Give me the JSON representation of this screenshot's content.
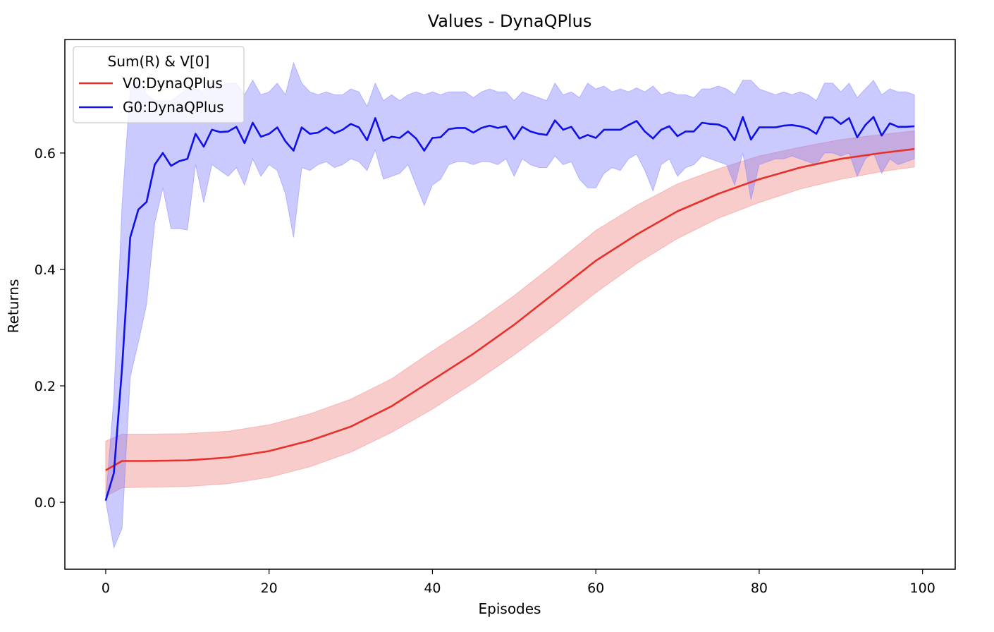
{
  "chart_data": {
    "type": "line",
    "title": "Values - DynaQPlus",
    "xlabel": "Episodes",
    "ylabel": "Returns",
    "xlim": [
      -5,
      104
    ],
    "ylim": [
      -0.115,
      0.795
    ],
    "xticks": [
      0,
      20,
      40,
      60,
      80,
      100
    ],
    "yticks": [
      0.0,
      0.2,
      0.4,
      0.6
    ],
    "xtick_labels": [
      "0",
      "20",
      "40",
      "60",
      "80",
      "100"
    ],
    "ytick_labels": [
      "0.0",
      "0.2",
      "0.4",
      "0.6"
    ],
    "grid": false,
    "legend": {
      "title": "Sum(R) & V[0]",
      "placement": "top-left",
      "entries": [
        "V0:DynaQPlus",
        "G0:DynaQPlus"
      ]
    },
    "series": [
      {
        "name": "V0:DynaQPlus",
        "color": "#e8302a",
        "band_color": "#f08080",
        "x": [
          0,
          2,
          5,
          10,
          15,
          20,
          25,
          30,
          35,
          40,
          45,
          50,
          55,
          60,
          65,
          70,
          75,
          80,
          85,
          90,
          95,
          99
        ],
        "mean": [
          0.055,
          0.071,
          0.071,
          0.072,
          0.077,
          0.088,
          0.106,
          0.13,
          0.165,
          0.21,
          0.255,
          0.305,
          0.36,
          0.415,
          0.46,
          0.5,
          0.53,
          0.555,
          0.575,
          0.59,
          0.6,
          0.607
        ],
        "lower": [
          0.01,
          0.025,
          0.026,
          0.027,
          0.032,
          0.043,
          0.061,
          0.086,
          0.12,
          0.16,
          0.205,
          0.253,
          0.305,
          0.36,
          0.41,
          0.453,
          0.488,
          0.515,
          0.538,
          0.555,
          0.568,
          0.576
        ],
        "upper": [
          0.105,
          0.117,
          0.117,
          0.118,
          0.122,
          0.133,
          0.152,
          0.177,
          0.212,
          0.26,
          0.305,
          0.355,
          0.41,
          0.467,
          0.51,
          0.547,
          0.573,
          0.595,
          0.61,
          0.623,
          0.632,
          0.638
        ]
      },
      {
        "name": "G0:DynaQPlus",
        "color": "#1010e8",
        "band_color": "#7b7bff",
        "x": [
          0,
          1,
          2,
          3,
          4,
          5,
          6,
          7,
          8,
          9,
          10,
          11,
          12,
          13,
          14,
          15,
          16,
          17,
          18,
          19,
          20,
          21,
          22,
          23,
          24,
          25,
          26,
          27,
          28,
          29,
          30,
          31,
          32,
          33,
          34,
          35,
          36,
          37,
          38,
          39,
          40,
          41,
          42,
          43,
          44,
          45,
          46,
          47,
          48,
          49,
          50,
          51,
          52,
          53,
          54,
          55,
          56,
          57,
          58,
          59,
          60,
          61,
          62,
          63,
          64,
          65,
          66,
          67,
          68,
          69,
          70,
          71,
          72,
          73,
          74,
          75,
          76,
          77,
          78,
          79,
          80,
          81,
          82,
          83,
          84,
          85,
          86,
          87,
          88,
          89,
          90,
          91,
          92,
          93,
          94,
          95,
          96,
          97,
          98,
          99
        ],
        "mean": [
          0.003,
          0.05,
          0.23,
          0.455,
          0.503,
          0.516,
          0.58,
          0.6,
          0.578,
          0.586,
          0.59,
          0.633,
          0.611,
          0.64,
          0.636,
          0.637,
          0.645,
          0.617,
          0.652,
          0.628,
          0.633,
          0.644,
          0.62,
          0.604,
          0.644,
          0.633,
          0.635,
          0.644,
          0.634,
          0.64,
          0.65,
          0.644,
          0.622,
          0.66,
          0.621,
          0.628,
          0.626,
          0.637,
          0.625,
          0.604,
          0.626,
          0.627,
          0.641,
          0.643,
          0.643,
          0.635,
          0.643,
          0.647,
          0.643,
          0.646,
          0.624,
          0.645,
          0.637,
          0.633,
          0.631,
          0.656,
          0.64,
          0.645,
          0.625,
          0.631,
          0.626,
          0.64,
          0.64,
          0.64,
          0.648,
          0.655,
          0.637,
          0.625,
          0.64,
          0.646,
          0.629,
          0.637,
          0.637,
          0.652,
          0.65,
          0.649,
          0.643,
          0.622,
          0.662,
          0.623,
          0.644,
          0.644,
          0.644,
          0.647,
          0.648,
          0.646,
          0.642,
          0.633,
          0.661,
          0.661,
          0.65,
          0.66,
          0.627,
          0.648,
          0.662,
          0.63,
          0.651,
          0.645,
          0.645,
          0.646
        ],
        "lower": [
          0.003,
          -0.078,
          -0.045,
          0.215,
          0.275,
          0.34,
          0.48,
          0.54,
          0.47,
          0.47,
          0.468,
          0.58,
          0.515,
          0.58,
          0.57,
          0.56,
          0.575,
          0.545,
          0.59,
          0.56,
          0.58,
          0.57,
          0.53,
          0.455,
          0.575,
          0.57,
          0.58,
          0.585,
          0.575,
          0.58,
          0.59,
          0.585,
          0.57,
          0.605,
          0.555,
          0.56,
          0.565,
          0.58,
          0.545,
          0.51,
          0.545,
          0.555,
          0.58,
          0.585,
          0.585,
          0.58,
          0.585,
          0.585,
          0.58,
          0.59,
          0.56,
          0.59,
          0.58,
          0.575,
          0.575,
          0.595,
          0.58,
          0.585,
          0.555,
          0.54,
          0.54,
          0.565,
          0.575,
          0.57,
          0.59,
          0.598,
          0.57,
          0.535,
          0.58,
          0.59,
          0.56,
          0.575,
          0.58,
          0.595,
          0.59,
          0.585,
          0.58,
          0.545,
          0.6,
          0.52,
          0.58,
          0.585,
          0.59,
          0.59,
          0.595,
          0.59,
          0.585,
          0.58,
          0.6,
          0.6,
          0.595,
          0.6,
          0.56,
          0.59,
          0.6,
          0.565,
          0.59,
          0.58,
          0.585,
          0.59
        ],
        "upper": [
          0.003,
          0.18,
          0.51,
          0.71,
          0.73,
          0.7,
          0.69,
          0.69,
          0.69,
          0.7,
          0.71,
          0.71,
          0.705,
          0.72,
          0.715,
          0.72,
          0.72,
          0.7,
          0.725,
          0.7,
          0.705,
          0.72,
          0.7,
          0.755,
          0.72,
          0.705,
          0.7,
          0.705,
          0.7,
          0.7,
          0.71,
          0.705,
          0.68,
          0.72,
          0.69,
          0.7,
          0.69,
          0.7,
          0.705,
          0.7,
          0.705,
          0.7,
          0.705,
          0.705,
          0.705,
          0.695,
          0.705,
          0.71,
          0.705,
          0.705,
          0.69,
          0.705,
          0.7,
          0.695,
          0.69,
          0.72,
          0.7,
          0.705,
          0.695,
          0.72,
          0.71,
          0.715,
          0.705,
          0.71,
          0.705,
          0.712,
          0.705,
          0.715,
          0.7,
          0.705,
          0.7,
          0.7,
          0.695,
          0.71,
          0.71,
          0.715,
          0.71,
          0.7,
          0.725,
          0.725,
          0.71,
          0.705,
          0.7,
          0.705,
          0.7,
          0.705,
          0.7,
          0.69,
          0.72,
          0.72,
          0.705,
          0.72,
          0.695,
          0.71,
          0.725,
          0.7,
          0.71,
          0.705,
          0.705,
          0.7
        ]
      }
    ]
  }
}
